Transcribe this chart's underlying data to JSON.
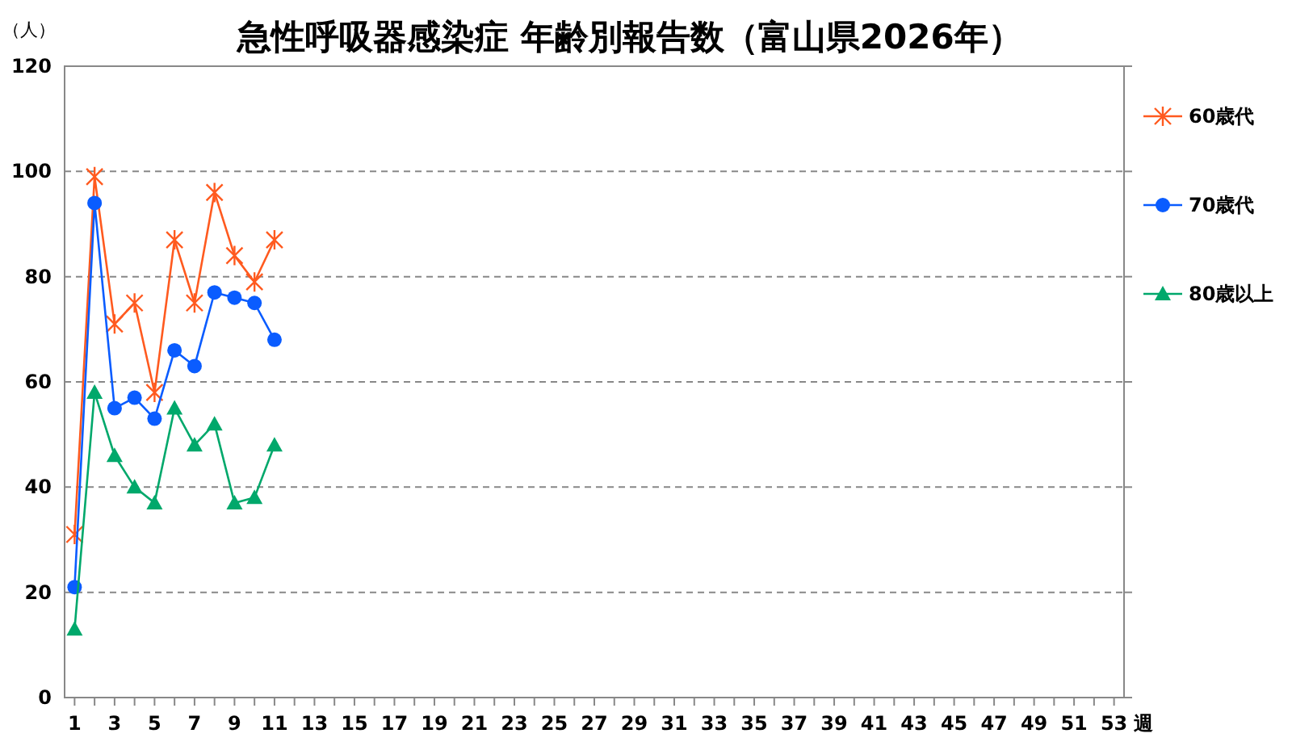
{
  "chart_data": {
    "type": "line",
    "title": "急性呼吸器感染症 年齢別報告数（富山県2026年）",
    "ylabel": "（人）",
    "xlabel": "週",
    "x": [
      1,
      2,
      3,
      4,
      5,
      6,
      7,
      8,
      9,
      10,
      11
    ],
    "series": [
      {
        "name": "60歳代",
        "color": "#ff5a1f",
        "marker": "cross",
        "values": [
          31,
          99,
          71,
          75,
          58,
          87,
          75,
          96,
          84,
          79,
          87
        ]
      },
      {
        "name": "70歳代",
        "color": "#0a5cff",
        "marker": "circle",
        "values": [
          21,
          94,
          55,
          57,
          53,
          66,
          63,
          77,
          76,
          75,
          68
        ]
      },
      {
        "name": "80歳以上",
        "color": "#00a86b",
        "marker": "triangle",
        "values": [
          13,
          58,
          46,
          40,
          37,
          55,
          48,
          52,
          37,
          38,
          48
        ]
      }
    ],
    "xlim": [
      0.5,
      53.5
    ],
    "xticks": [
      1,
      {
        "value": 2,
        "label": null
      },
      3,
      {
        "value": 4,
        "label": null
      },
      5,
      {
        "value": 6,
        "label": null
      },
      7,
      {
        "value": 8,
        "label": null
      },
      9,
      {
        "value": 10,
        "label": null
      },
      11,
      {
        "value": 12,
        "label": null
      },
      13,
      {
        "value": 14,
        "label": null
      },
      15,
      {
        "value": 16,
        "label": null
      },
      17,
      {
        "value": 18,
        "label": null
      },
      19,
      {
        "value": 20,
        "label": null
      },
      21,
      {
        "value": 22,
        "label": null
      },
      23,
      {
        "value": 24,
        "label": null
      },
      25,
      {
        "value": 26,
        "label": null
      },
      27,
      {
        "value": 28,
        "label": null
      },
      29,
      {
        "value": 30,
        "label": null
      },
      31,
      {
        "value": 32,
        "label": null
      },
      33,
      {
        "value": 34,
        "label": null
      },
      35,
      {
        "value": 36,
        "label": null
      },
      37,
      {
        "value": 38,
        "label": null
      },
      39,
      {
        "value": 40,
        "label": null
      },
      41,
      {
        "value": 42,
        "label": null
      },
      43,
      {
        "value": 44,
        "label": null
      },
      45,
      {
        "value": 46,
        "label": null
      },
      47,
      {
        "value": 48,
        "label": null
      },
      49,
      {
        "value": 50,
        "label": null
      },
      51,
      {
        "value": 52,
        "label": null
      },
      53
    ],
    "ylim": [
      0,
      120
    ],
    "yticks": [
      0,
      20,
      40,
      60,
      80,
      100,
      120
    ],
    "grid": "y",
    "legend": "right"
  }
}
